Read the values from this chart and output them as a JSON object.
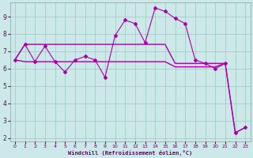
{
  "xlabel": "Windchill (Refroidissement éolien,°C)",
  "background_color": "#cce8e8",
  "grid_color": "#99ccbb",
  "line_color": "#aa00aa",
  "xlim": [
    -0.5,
    23.5
  ],
  "ylim": [
    1.8,
    9.8
  ],
  "yticks": [
    2,
    3,
    4,
    5,
    6,
    7,
    8,
    9
  ],
  "xticks": [
    0,
    1,
    2,
    3,
    4,
    5,
    6,
    7,
    8,
    9,
    10,
    11,
    12,
    13,
    14,
    15,
    16,
    17,
    18,
    19,
    20,
    21,
    22,
    23
  ],
  "line1_x": [
    0,
    1,
    2,
    3,
    4,
    5,
    6,
    7,
    8,
    9,
    10,
    11,
    12,
    13,
    14,
    15,
    16,
    17,
    18,
    19,
    20,
    21,
    22,
    23
  ],
  "line1_y": [
    6.5,
    7.4,
    6.4,
    7.3,
    6.4,
    5.8,
    6.5,
    6.7,
    6.5,
    5.5,
    7.9,
    8.8,
    8.6,
    7.5,
    9.5,
    9.3,
    8.9,
    8.6,
    6.5,
    6.3,
    6.0,
    6.3,
    2.3,
    2.6
  ],
  "line2_x": [
    0,
    1,
    2,
    3,
    4,
    5,
    6,
    7,
    8,
    9,
    10,
    11,
    12,
    13,
    14,
    15,
    16,
    17,
    18,
    19,
    20,
    21,
    22,
    23
  ],
  "line2_y": [
    6.5,
    6.4,
    6.4,
    6.4,
    6.4,
    6.4,
    6.4,
    6.4,
    6.4,
    6.4,
    6.4,
    6.4,
    6.4,
    6.4,
    6.4,
    6.4,
    6.1,
    6.1,
    6.1,
    6.1,
    6.1,
    6.3,
    2.3,
    2.6
  ],
  "line3_x": [
    0,
    1,
    2,
    3,
    4,
    5,
    6,
    7,
    8,
    9,
    10,
    11,
    12,
    13,
    14,
    15,
    16,
    17,
    18,
    19,
    20,
    21
  ],
  "line3_y": [
    6.5,
    7.4,
    7.4,
    7.4,
    7.4,
    7.4,
    7.4,
    7.4,
    7.4,
    7.4,
    7.4,
    7.4,
    7.4,
    7.4,
    7.4,
    7.4,
    6.3,
    6.3,
    6.3,
    6.3,
    6.3,
    6.3
  ]
}
